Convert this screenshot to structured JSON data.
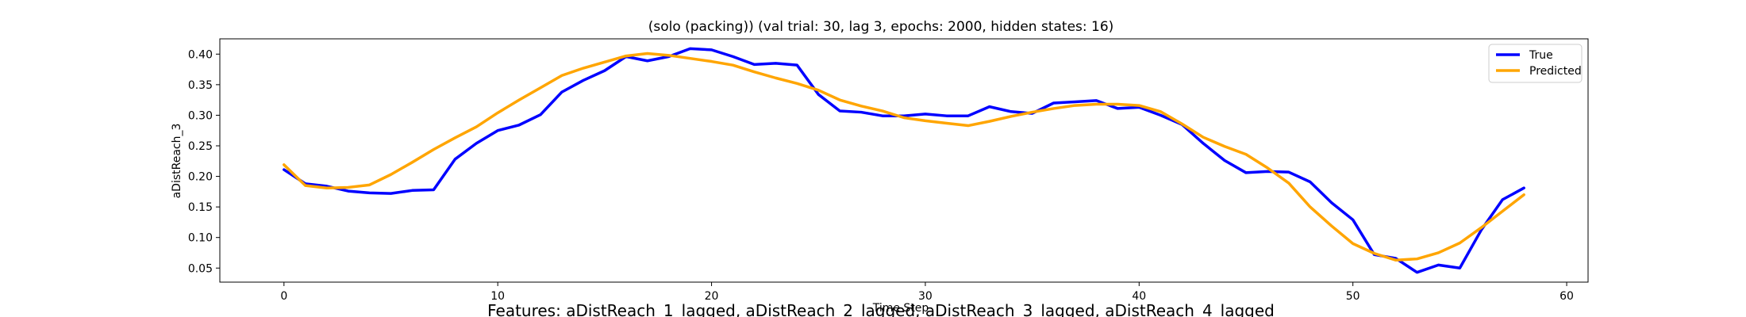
{
  "chart_data": {
    "type": "line",
    "title": "(solo (packing)) (val trial: 30, lag 3, epochs: 2000, hidden states: 16)",
    "xlabel": "Time Step",
    "ylabel": "aDistReach_3",
    "xlim": [
      -3,
      61
    ],
    "ylim": [
      0.027,
      0.425
    ],
    "xticks": [
      0,
      10,
      20,
      30,
      40,
      50,
      60
    ],
    "yticks": [
      0.05,
      0.1,
      0.15,
      0.2,
      0.25,
      0.3,
      0.35,
      0.4
    ],
    "ytick_labels": [
      "0.05",
      "0.10",
      "0.15",
      "0.20",
      "0.25",
      "0.30",
      "0.35",
      "0.40"
    ],
    "grid": false,
    "legend_position": "top-right",
    "x": [
      0,
      1,
      2,
      3,
      4,
      5,
      6,
      7,
      8,
      9,
      10,
      11,
      12,
      13,
      14,
      15,
      16,
      17,
      18,
      19,
      20,
      21,
      22,
      23,
      24,
      25,
      26,
      27,
      28,
      29,
      30,
      31,
      32,
      33,
      34,
      35,
      36,
      37,
      38,
      39,
      40,
      41,
      42,
      43,
      44,
      45,
      46,
      47,
      48,
      49,
      50,
      51,
      52,
      53,
      54,
      55,
      56,
      57,
      58
    ],
    "series": [
      {
        "name": "True",
        "color": "#0000ff",
        "values": [
          0.211,
          0.188,
          0.184,
          0.176,
          0.173,
          0.172,
          0.177,
          0.178,
          0.228,
          0.254,
          0.275,
          0.284,
          0.301,
          0.338,
          0.357,
          0.373,
          0.396,
          0.389,
          0.396,
          0.409,
          0.407,
          0.396,
          0.383,
          0.385,
          0.382,
          0.334,
          0.307,
          0.305,
          0.299,
          0.299,
          0.302,
          0.299,
          0.299,
          0.314,
          0.306,
          0.303,
          0.32,
          0.322,
          0.324,
          0.311,
          0.313,
          0.3,
          0.285,
          0.254,
          0.226,
          0.206,
          0.208,
          0.207,
          0.191,
          0.157,
          0.129,
          0.072,
          0.066,
          0.043,
          0.055,
          0.05,
          0.112,
          0.162,
          0.181
        ]
      },
      {
        "name": "Predicted",
        "color": "#ffa500",
        "values": [
          0.219,
          0.185,
          0.181,
          0.182,
          0.186,
          0.203,
          0.223,
          0.244,
          0.263,
          0.281,
          0.304,
          0.325,
          0.345,
          0.365,
          0.377,
          0.387,
          0.397,
          0.401,
          0.398,
          0.393,
          0.388,
          0.382,
          0.371,
          0.361,
          0.352,
          0.341,
          0.325,
          0.315,
          0.307,
          0.296,
          0.291,
          0.287,
          0.283,
          0.29,
          0.298,
          0.305,
          0.311,
          0.316,
          0.318,
          0.318,
          0.316,
          0.306,
          0.286,
          0.264,
          0.249,
          0.236,
          0.214,
          0.189,
          0.15,
          0.119,
          0.09,
          0.074,
          0.063,
          0.065,
          0.075,
          0.091,
          0.116,
          0.143,
          0.17
        ]
      }
    ],
    "footer_text": "Features: aDistReach_1_lagged, aDistReach_2_lagged, aDistReach_3_lagged, aDistReach_4_lagged"
  }
}
